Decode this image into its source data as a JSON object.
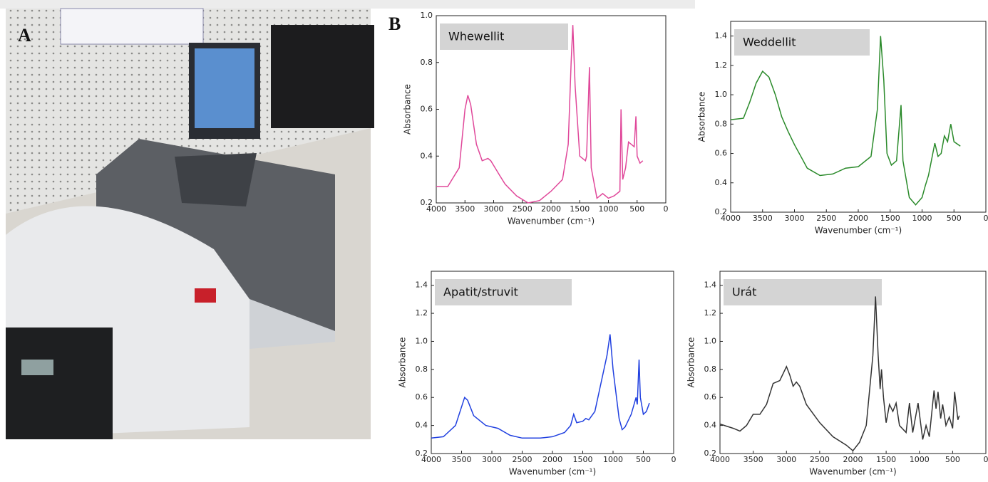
{
  "figure": {
    "panel_a_label": "A",
    "panel_b_label": "B"
  },
  "chart_data": [
    {
      "type": "line",
      "title": "Whewellit",
      "x_label": "Wavenumber (cm⁻¹)",
      "y_label": "Absorbance",
      "color": "#e0489a",
      "xlim": [
        4000,
        0
      ],
      "xticks": [
        4000,
        3500,
        3000,
        2500,
        2000,
        1500,
        1000,
        500,
        0
      ],
      "ylim": [
        0.2,
        1.0
      ],
      "yticks": [
        0.2,
        0.4,
        0.6,
        0.8,
        {
          "value": 1.0,
          "label": "1.0"
        }
      ],
      "x": [
        4000,
        3800,
        3600,
        3500,
        3450,
        3400,
        3300,
        3200,
        3100,
        3050,
        3000,
        2900,
        2800,
        2600,
        2400,
        2200,
        2000,
        1800,
        1700,
        1650,
        1620,
        1580,
        1500,
        1400,
        1380,
        1330,
        1300,
        1200,
        1100,
        1000,
        900,
        800,
        780,
        750,
        700,
        650,
        600,
        550,
        520,
        500,
        450,
        400
      ],
      "values": [
        0.27,
        0.27,
        0.35,
        0.6,
        0.66,
        0.62,
        0.45,
        0.38,
        0.39,
        0.38,
        0.36,
        0.32,
        0.28,
        0.23,
        0.2,
        0.21,
        0.25,
        0.3,
        0.45,
        0.8,
        0.96,
        0.7,
        0.4,
        0.38,
        0.4,
        0.78,
        0.35,
        0.22,
        0.24,
        0.22,
        0.23,
        0.25,
        0.6,
        0.3,
        0.35,
        0.46,
        0.45,
        0.44,
        0.57,
        0.4,
        0.37,
        0.38
      ]
    },
    {
      "type": "line",
      "title": "Weddellit",
      "x_label": "Wavenumber (cm⁻¹)",
      "y_label": "Absorbance",
      "color": "#2a8a2a",
      "xlim": [
        4000,
        0
      ],
      "xticks": [
        4000,
        3500,
        3000,
        2500,
        2000,
        1500,
        1000,
        500,
        0
      ],
      "ylim": [
        0.2,
        1.5
      ],
      "yticks": [
        0.2,
        0.4,
        0.6,
        0.8,
        {
          "value": 1.0,
          "label": "1.0"
        },
        1.2,
        1.4
      ],
      "x": [
        4000,
        3800,
        3700,
        3600,
        3500,
        3400,
        3300,
        3200,
        3100,
        3000,
        2900,
        2800,
        2600,
        2400,
        2200,
        2000,
        1800,
        1700,
        1650,
        1600,
        1550,
        1480,
        1400,
        1330,
        1300,
        1200,
        1100,
        1000,
        950,
        900,
        800,
        750,
        700,
        650,
        600,
        550,
        500,
        400
      ],
      "values": [
        0.83,
        0.84,
        0.95,
        1.08,
        1.16,
        1.12,
        1.0,
        0.85,
        0.75,
        0.66,
        0.58,
        0.5,
        0.45,
        0.46,
        0.5,
        0.51,
        0.58,
        0.9,
        1.4,
        1.1,
        0.6,
        0.52,
        0.55,
        0.93,
        0.55,
        0.3,
        0.25,
        0.3,
        0.38,
        0.45,
        0.67,
        0.58,
        0.6,
        0.72,
        0.68,
        0.8,
        0.68,
        0.65
      ]
    },
    {
      "type": "line",
      "title": "Apatit/struvit",
      "x_label": "Wavenumber (cm⁻¹)",
      "y_label": "Absorbance",
      "color": "#2040e0",
      "xlim": [
        4000,
        0
      ],
      "xticks": [
        4000,
        3500,
        3000,
        2500,
        2000,
        1500,
        1000,
        500,
        0
      ],
      "ylim": [
        0.2,
        1.5
      ],
      "yticks": [
        0.2,
        0.4,
        0.6,
        0.8,
        {
          "value": 1.0,
          "label": "1.0"
        },
        1.2,
        1.4
      ],
      "x": [
        4000,
        3800,
        3600,
        3450,
        3400,
        3300,
        3100,
        2900,
        2700,
        2500,
        2200,
        2000,
        1800,
        1700,
        1650,
        1600,
        1500,
        1450,
        1400,
        1300,
        1200,
        1100,
        1050,
        1000,
        900,
        850,
        800,
        700,
        620,
        600,
        570,
        550,
        500,
        450,
        400
      ],
      "values": [
        0.31,
        0.32,
        0.4,
        0.6,
        0.58,
        0.47,
        0.4,
        0.38,
        0.33,
        0.31,
        0.31,
        0.32,
        0.35,
        0.4,
        0.48,
        0.42,
        0.43,
        0.45,
        0.44,
        0.5,
        0.7,
        0.9,
        1.05,
        0.8,
        0.45,
        0.37,
        0.39,
        0.48,
        0.6,
        0.55,
        0.87,
        0.6,
        0.48,
        0.5,
        0.56
      ]
    },
    {
      "type": "line",
      "title": "Urát",
      "x_label": "Wavenumber (cm⁻¹)",
      "y_label": "Absorbance",
      "color": "#333333",
      "xlim": [
        4000,
        0
      ],
      "xticks": [
        4000,
        3500,
        3000,
        2500,
        2000,
        1500,
        1000,
        500,
        0
      ],
      "ylim": [
        0.2,
        1.5
      ],
      "yticks": [
        0.2,
        0.4,
        0.6,
        0.8,
        {
          "value": 1.0,
          "label": "1.0"
        },
        1.2,
        1.4
      ],
      "x": [
        4000,
        3800,
        3700,
        3600,
        3500,
        3400,
        3300,
        3200,
        3100,
        3000,
        2950,
        2900,
        2850,
        2800,
        2700,
        2500,
        2300,
        2100,
        2000,
        1900,
        1800,
        1700,
        1660,
        1620,
        1590,
        1570,
        1540,
        1500,
        1450,
        1400,
        1350,
        1300,
        1200,
        1150,
        1100,
        1020,
        950,
        900,
        850,
        780,
        750,
        720,
        680,
        650,
        600,
        550,
        500,
        470,
        420,
        400
      ],
      "values": [
        0.41,
        0.38,
        0.36,
        0.4,
        0.48,
        0.48,
        0.55,
        0.7,
        0.72,
        0.82,
        0.76,
        0.68,
        0.71,
        0.68,
        0.55,
        0.42,
        0.32,
        0.26,
        0.22,
        0.28,
        0.4,
        0.9,
        1.32,
        0.9,
        0.66,
        0.8,
        0.6,
        0.42,
        0.55,
        0.5,
        0.56,
        0.4,
        0.35,
        0.56,
        0.35,
        0.56,
        0.3,
        0.4,
        0.32,
        0.65,
        0.52,
        0.64,
        0.45,
        0.55,
        0.4,
        0.46,
        0.38,
        0.64,
        0.44,
        0.47
      ]
    }
  ]
}
